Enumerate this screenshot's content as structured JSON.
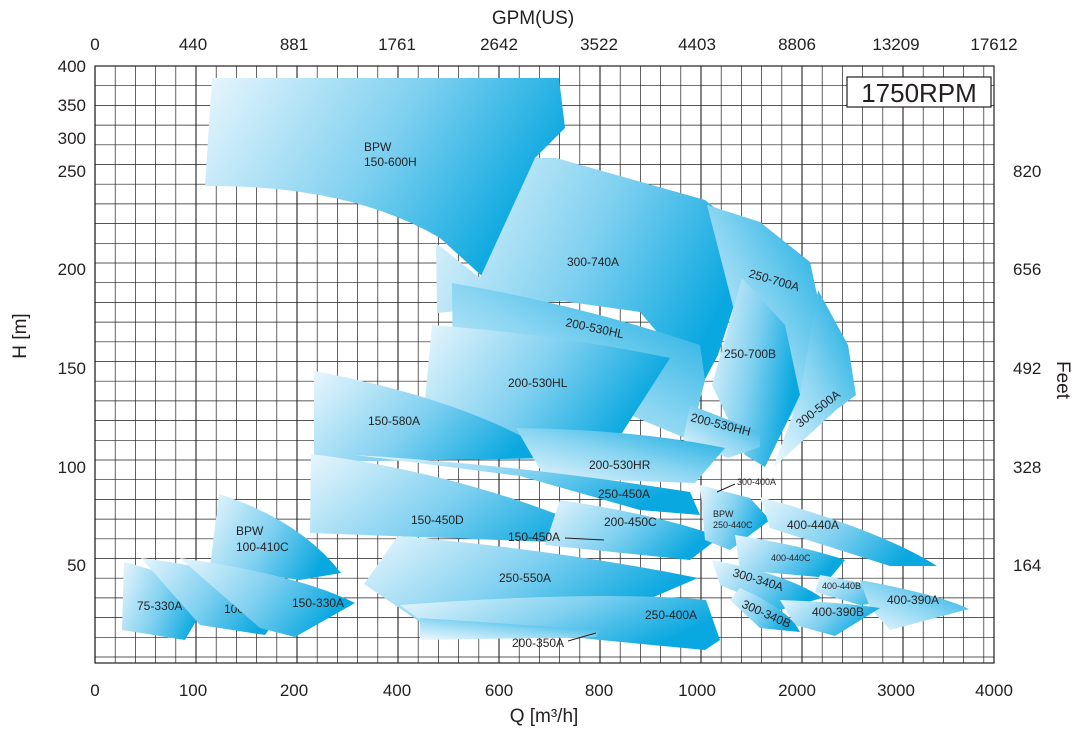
{
  "chart_data": {
    "type": "area",
    "title": "",
    "rpm_label": "1750RPM",
    "xlabel": "Q [m³/h]",
    "x2label": "GPM(US)",
    "ylabel": "H [m]",
    "y2label": "Feet",
    "x_ticks": [
      "0",
      "100",
      "200",
      "400",
      "600",
      "800",
      "1000",
      "2000",
      "3000",
      "4000"
    ],
    "x2_ticks": [
      "0",
      "440",
      "881",
      "1761",
      "2642",
      "3522",
      "4403",
      "8806",
      "13209",
      "17612"
    ],
    "y_ticks": [
      "50",
      "100",
      "150",
      "200",
      "250",
      "300",
      "350",
      "400"
    ],
    "y2_ticks": [
      "164",
      "328",
      "492",
      "656",
      "820"
    ],
    "grid": true,
    "series": [
      {
        "name": "BPW 150-600H"
      },
      {
        "name": "300-740A"
      },
      {
        "name": "250-700A"
      },
      {
        "name": "250-700B"
      },
      {
        "name": "300-500A"
      },
      {
        "name": "200-530HL"
      },
      {
        "name": "200-530HL"
      },
      {
        "name": "150-580A"
      },
      {
        "name": "200-530HH"
      },
      {
        "name": "200-530HR"
      },
      {
        "name": "300-400A"
      },
      {
        "name": "250-450A"
      },
      {
        "name": "150-450D"
      },
      {
        "name": "200-450C"
      },
      {
        "name": "150-450A"
      },
      {
        "name": "BPW 250-440C"
      },
      {
        "name": "400-440A"
      },
      {
        "name": "400-440C"
      },
      {
        "name": "BPW 100-410C"
      },
      {
        "name": "250-550A"
      },
      {
        "name": "300-340A"
      },
      {
        "name": "400-440B"
      },
      {
        "name": "400-390A"
      },
      {
        "name": "400-390B"
      },
      {
        "name": "300-340B"
      },
      {
        "name": "250-400A"
      },
      {
        "name": "200-350A"
      },
      {
        "name": "75-330A"
      },
      {
        "name": "100-330A"
      },
      {
        "name": "150-330A"
      }
    ]
  }
}
